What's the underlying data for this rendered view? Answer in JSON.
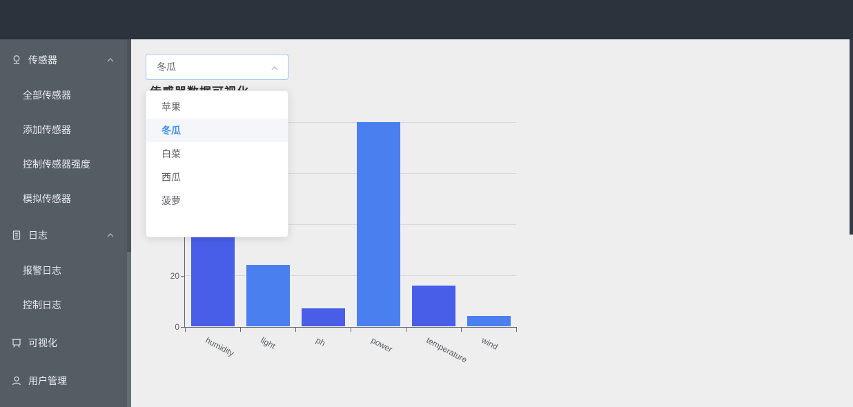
{
  "header": {
    "title": ""
  },
  "sidebar": {
    "groups": [
      {
        "label": "传感器",
        "icon": "sensor-icon",
        "expanded": true,
        "children": [
          "全部传感器",
          "添加传感器",
          "控制传感器强度",
          "模拟传感器"
        ]
      },
      {
        "label": "日志",
        "icon": "log-icon",
        "expanded": true,
        "children": [
          "报警日志",
          "控制日志"
        ]
      },
      {
        "label": "可视化",
        "icon": "board-icon",
        "children": []
      },
      {
        "label": "用户管理",
        "icon": "user-icon",
        "children": []
      }
    ]
  },
  "main": {
    "title": "传感器数据可视化",
    "select": {
      "value": "冬瓜",
      "state": "open",
      "chevron": "chevron-up-icon"
    },
    "dropdown": {
      "options": [
        {
          "label": "苹果",
          "selected": false
        },
        {
          "label": "冬瓜",
          "selected": true
        },
        {
          "label": "白菜",
          "selected": false
        },
        {
          "label": "西瓜",
          "selected": false
        },
        {
          "label": "菠萝",
          "selected": false
        }
      ]
    }
  },
  "chart_data": {
    "type": "bar",
    "title": "传感器数据可视化",
    "categories": [
      "humidity",
      "light",
      "ph",
      "power",
      "temperature",
      "wind"
    ],
    "values": [
      35,
      24,
      7,
      80,
      16,
      4
    ],
    "xlabel": "",
    "ylabel": "",
    "ylim": [
      0,
      80
    ],
    "ytick_interval": 20,
    "grid": true,
    "legend": "none",
    "bar_colors_alternating": [
      "#485ee8",
      "#4a7ff0"
    ]
  },
  "colors": {
    "accent": "#3f8fee",
    "header_bg": "#2c333d",
    "sidebar_bg": "#545c64",
    "main_bg": "#eeeeee",
    "bar_dark": "#485ee8",
    "bar_light": "#4a7ff0"
  }
}
